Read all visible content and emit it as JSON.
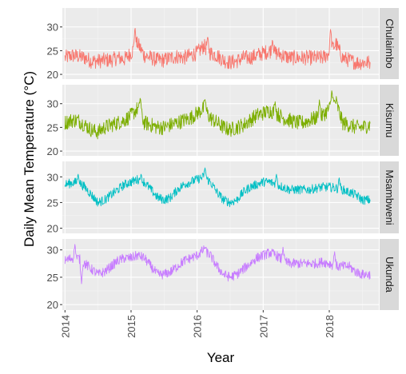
{
  "chart_data": {
    "type": "line",
    "xlabel": "Year",
    "ylabel": "Daily Mean Temperature (°C)",
    "x_ticks": [
      "2014",
      "2015",
      "2016",
      "2017",
      "2018"
    ],
    "x_range": [
      2013.96,
      2018.75
    ],
    "facets": [
      {
        "name": "Chulaimbo",
        "color": "#F8766D",
        "y_ticks": [
          20,
          25,
          30
        ],
        "ylim": [
          19,
          34
        ],
        "x": [
          2014.0,
          2014.1,
          2014.2,
          2014.3,
          2014.4,
          2014.5,
          2014.6,
          2014.7,
          2014.8,
          2014.9,
          2015.0,
          2015.1,
          2015.2,
          2015.3,
          2015.4,
          2015.5,
          2015.6,
          2015.7,
          2015.8,
          2015.9,
          2016.0,
          2016.1,
          2016.2,
          2016.3,
          2016.4,
          2016.5,
          2016.6,
          2016.7,
          2016.8,
          2016.9,
          2017.0,
          2017.1,
          2017.2,
          2017.3,
          2017.4,
          2017.5,
          2017.6,
          2017.7,
          2017.8,
          2017.9,
          2018.0,
          2018.1,
          2018.2,
          2018.3,
          2018.4,
          2018.5,
          2018.6
        ],
        "y": [
          23.5,
          24.0,
          23.8,
          23.5,
          22.8,
          22.8,
          23.0,
          23.0,
          23.5,
          23.2,
          24.5,
          26.5,
          24.0,
          23.5,
          23.0,
          23.0,
          23.5,
          23.8,
          23.5,
          24.0,
          24.5,
          26.0,
          24.5,
          24.0,
          23.0,
          22.5,
          22.8,
          23.5,
          23.5,
          24.0,
          24.5,
          25.0,
          24.5,
          24.0,
          23.5,
          23.5,
          23.5,
          23.5,
          23.5,
          23.5,
          24.5,
          26.5,
          23.5,
          23.0,
          22.5,
          22.5,
          22.5
        ],
        "events": [
          [
            2015.06,
            30.0
          ],
          [
            2016.16,
            28.0
          ],
          [
            2018.02,
            29.8
          ],
          [
            2017.14,
            27.5
          ]
        ]
      },
      {
        "name": "Kisumu",
        "color": "#7CAE00",
        "y_ticks": [
          20,
          25,
          30
        ],
        "ylim": [
          19,
          34
        ],
        "x": [
          2014.0,
          2014.1,
          2014.2,
          2014.3,
          2014.4,
          2014.5,
          2014.6,
          2014.7,
          2014.8,
          2014.9,
          2015.0,
          2015.1,
          2015.2,
          2015.3,
          2015.4,
          2015.5,
          2015.6,
          2015.7,
          2015.8,
          2015.9,
          2016.0,
          2016.1,
          2016.2,
          2016.3,
          2016.4,
          2016.5,
          2016.6,
          2016.7,
          2016.8,
          2016.9,
          2017.0,
          2017.1,
          2017.2,
          2017.3,
          2017.4,
          2017.5,
          2017.6,
          2017.7,
          2017.8,
          2017.9,
          2018.0,
          2018.1,
          2018.2,
          2018.3,
          2018.4,
          2018.5,
          2018.6
        ],
        "y": [
          26.0,
          26.5,
          26.5,
          25.5,
          24.5,
          24.0,
          25.0,
          25.5,
          26.0,
          26.5,
          27.5,
          29.0,
          26.0,
          25.5,
          25.0,
          25.0,
          25.5,
          26.0,
          26.5,
          27.0,
          28.0,
          29.0,
          27.0,
          26.0,
          25.0,
          24.5,
          25.0,
          25.5,
          26.5,
          27.5,
          28.0,
          28.5,
          28.0,
          27.0,
          26.5,
          26.0,
          26.0,
          26.5,
          27.0,
          27.5,
          29.0,
          30.5,
          26.0,
          25.5,
          25.0,
          25.0,
          25.5
        ],
        "events": [
          [
            2015.14,
            31.5
          ],
          [
            2016.12,
            31.0
          ],
          [
            2018.04,
            33.0
          ],
          [
            2017.18,
            30.5
          ],
          [
            2017.85,
            30.8
          ]
        ]
      },
      {
        "name": "Msambweni",
        "color": "#00BFC4",
        "y_ticks": [
          20,
          25,
          30
        ],
        "ylim": [
          19,
          33
        ],
        "x": [
          2014.0,
          2014.1,
          2014.2,
          2014.3,
          2014.4,
          2014.5,
          2014.6,
          2014.7,
          2014.8,
          2014.9,
          2015.0,
          2015.1,
          2015.2,
          2015.3,
          2015.4,
          2015.5,
          2015.6,
          2015.7,
          2015.8,
          2015.9,
          2016.0,
          2016.1,
          2016.2,
          2016.3,
          2016.4,
          2016.5,
          2016.6,
          2016.7,
          2016.8,
          2016.9,
          2017.0,
          2017.1,
          2017.2,
          2017.3,
          2017.4,
          2017.5,
          2017.6,
          2017.7,
          2017.8,
          2017.9,
          2018.0,
          2018.1,
          2018.2,
          2018.3,
          2018.4,
          2018.5,
          2018.6
        ],
        "y": [
          28.5,
          28.8,
          29.0,
          28.0,
          26.5,
          25.0,
          25.5,
          26.5,
          27.5,
          28.5,
          29.0,
          29.5,
          29.0,
          27.5,
          26.0,
          25.5,
          26.0,
          27.5,
          28.5,
          29.0,
          29.5,
          30.0,
          29.0,
          27.0,
          25.5,
          25.0,
          25.5,
          27.0,
          28.0,
          28.5,
          29.0,
          29.0,
          28.5,
          28.0,
          27.5,
          27.5,
          27.5,
          27.5,
          27.8,
          28.0,
          28.0,
          27.8,
          27.5,
          27.0,
          26.5,
          25.5,
          25.5
        ],
        "events": [
          [
            2014.2,
            30.5
          ],
          [
            2016.12,
            31.8
          ],
          [
            2017.2,
            30.5
          ],
          [
            2015.15,
            30.5
          ],
          [
            2018.15,
            29.8
          ]
        ]
      },
      {
        "name": "Ukunda",
        "color": "#C77CFF",
        "y_ticks": [
          20,
          25,
          30
        ],
        "ylim": [
          19,
          32
        ],
        "x": [
          2014.0,
          2014.1,
          2014.2,
          2014.3,
          2014.4,
          2014.5,
          2014.6,
          2014.7,
          2014.8,
          2014.9,
          2015.0,
          2015.1,
          2015.2,
          2015.3,
          2015.4,
          2015.5,
          2015.6,
          2015.7,
          2015.8,
          2015.9,
          2016.0,
          2016.1,
          2016.2,
          2016.3,
          2016.4,
          2016.5,
          2016.6,
          2016.7,
          2016.8,
          2016.9,
          2017.0,
          2017.1,
          2017.2,
          2017.3,
          2017.4,
          2017.5,
          2017.6,
          2017.7,
          2017.8,
          2017.9,
          2018.0,
          2018.1,
          2018.2,
          2018.3,
          2018.4,
          2018.5,
          2018.6
        ],
        "y": [
          28.0,
          28.5,
          28.5,
          27.5,
          26.5,
          25.5,
          26.0,
          27.0,
          28.0,
          28.5,
          28.5,
          29.0,
          28.5,
          27.0,
          25.5,
          25.5,
          26.0,
          27.0,
          28.0,
          28.5,
          29.0,
          30.0,
          29.0,
          27.0,
          25.5,
          25.0,
          25.5,
          26.5,
          27.5,
          28.5,
          29.0,
          29.5,
          29.0,
          28.0,
          27.5,
          27.5,
          27.5,
          27.5,
          27.5,
          27.8,
          27.5,
          27.0,
          27.0,
          27.0,
          26.0,
          25.5,
          25.5
        ],
        "events": [
          [
            2014.15,
            31.0
          ],
          [
            2016.12,
            30.5
          ],
          [
            2017.3,
            30.5
          ],
          [
            2018.08,
            29.8
          ],
          [
            2014.25,
            23.8
          ]
        ]
      }
    ]
  }
}
